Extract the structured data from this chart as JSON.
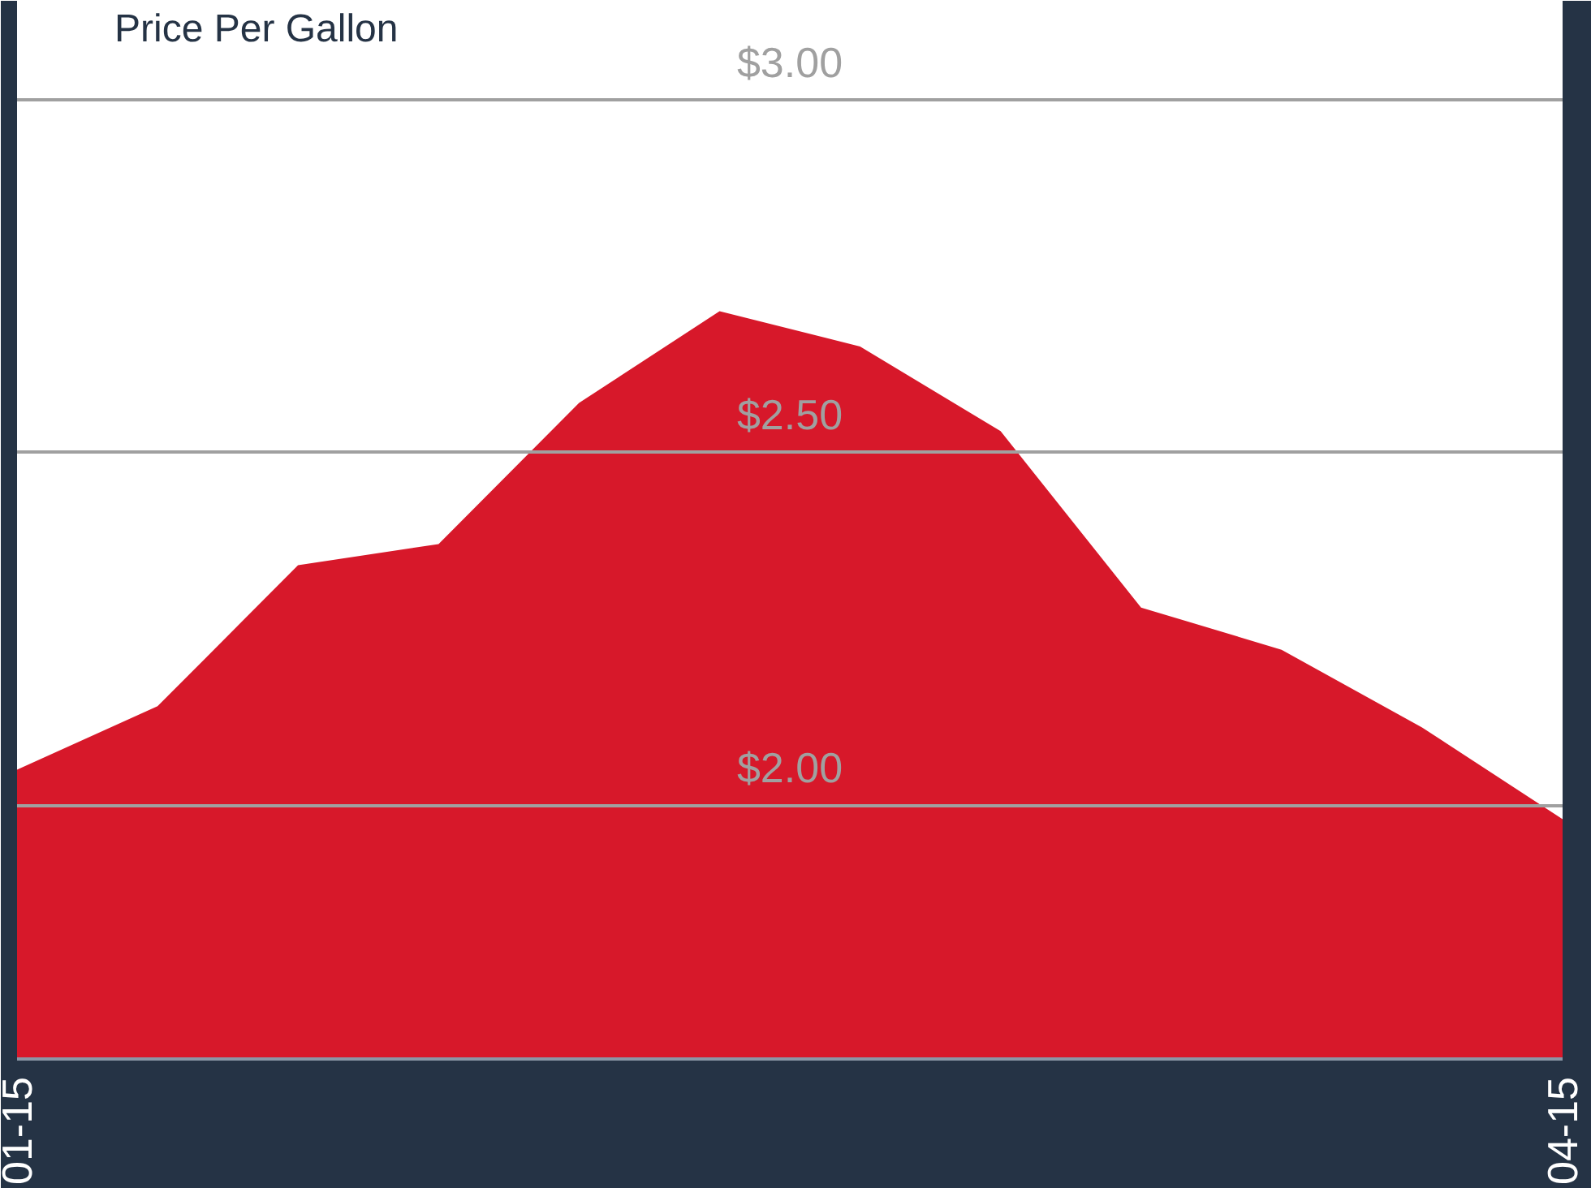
{
  "chart_data": {
    "type": "area",
    "title": "Price Per Gallon",
    "categories": [
      "01-15",
      null,
      null,
      null,
      null,
      null,
      null,
      null,
      null,
      null,
      null,
      "04-15"
    ],
    "series": [
      {
        "color": "#d7182a",
        "values": [
          2.05,
          2.14,
          2.34,
          2.37,
          2.57,
          2.7,
          2.65,
          2.53,
          2.28,
          2.22,
          2.11,
          1.98
        ]
      }
    ],
    "ylim": [
      1.64,
      3.14
    ],
    "yticks": [
      {
        "value": 2,
        "label": "$2.00"
      },
      {
        "value": 2.5,
        "label": "$2.50"
      },
      {
        "value": 3,
        "label": "$3.00"
      }
    ],
    "grid": "y"
  }
}
